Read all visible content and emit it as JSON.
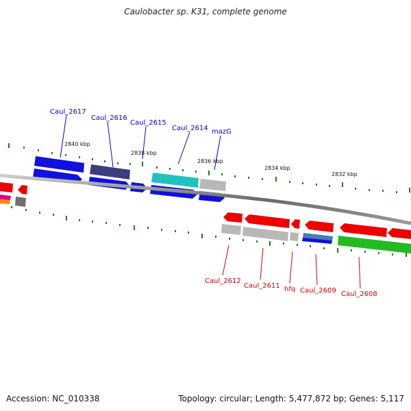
{
  "title": "Caulobacter sp. K31, complete genome",
  "footer": {
    "accession": "Accession: NC_010338",
    "info": "Topology: circular; Length: 5,477,872 bp; Genes: 5,117"
  },
  "scale_labels": [
    "2840 kbp",
    "2838 kbp",
    "2836 kbp",
    "2834 kbp",
    "2832 kbp"
  ],
  "top_labels": [
    "Caul_2617",
    "Caul_2616",
    "Caul_2615",
    "Caul_2614",
    "mazG"
  ],
  "bottom_labels": [
    "Caul_2612",
    "Caul_2611",
    "hfq",
    "Caul_2609",
    "Caul_2608"
  ],
  "colors": {
    "blue": "#1010e0",
    "navy": "#3c3c80",
    "cyan": "#20c0c0",
    "gray": "#b8b8b8",
    "red": "#ee0000",
    "green": "#22bb22",
    "steel": "#4a7ab8",
    "top_label": "#0000cc",
    "bottom_label": "#cc0000",
    "tick": "#1a7a1a"
  }
}
